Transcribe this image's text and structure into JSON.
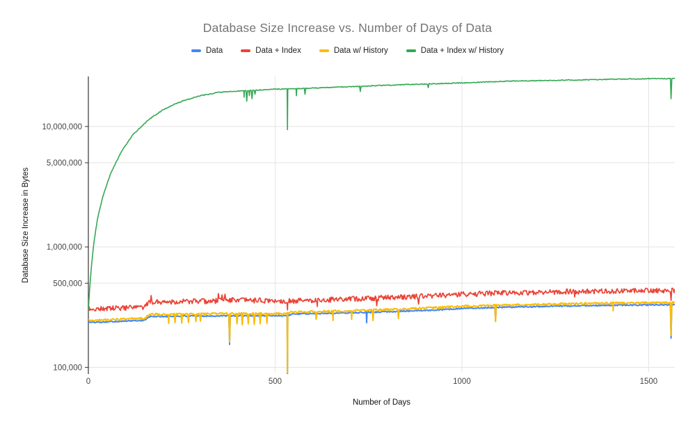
{
  "chart_data": {
    "type": "line",
    "title": "Database Size Increase vs. Number of Days of Data",
    "xlabel": "Number of Days",
    "ylabel": "Database Size Increase in Bytes",
    "x_scale": "linear",
    "y_scale": "log",
    "xlim": [
      0,
      1570
    ],
    "ylim": [
      88000,
      26000000
    ],
    "grid": true,
    "legend_position": "top-center",
    "x_ticks": [
      {
        "value": 0,
        "label": "0"
      },
      {
        "value": 500,
        "label": "500"
      },
      {
        "value": 1000,
        "label": "1000"
      },
      {
        "value": 1500,
        "label": "1500"
      }
    ],
    "y_ticks": [
      {
        "value": 100000,
        "label": "100,000"
      },
      {
        "value": 500000,
        "label": "500,000"
      },
      {
        "value": 1000000,
        "label": "1,000,000"
      },
      {
        "value": 5000000,
        "label": "5,000,000"
      },
      {
        "value": 10000000,
        "label": "10,000,000"
      }
    ],
    "colors": {
      "background": "#ffffff",
      "grid": "#e3e3e3",
      "axis": "#333333",
      "tick_label": "#444444",
      "axis_title": "#111111",
      "title": "#757575",
      "legend_text": "#202124"
    },
    "series": [
      {
        "name": "Data",
        "color": "#4285F4",
        "line_width": 2,
        "noise": 0.012,
        "seed": 101,
        "anchors": [
          [
            0,
            236000
          ],
          [
            150,
            246000
          ],
          [
            165,
            264000
          ],
          [
            300,
            267000
          ],
          [
            530,
            269000
          ],
          [
            548,
            277000
          ],
          [
            700,
            284000
          ],
          [
            850,
            293000
          ],
          [
            950,
            302000
          ],
          [
            1000,
            309000
          ],
          [
            1100,
            315000
          ],
          [
            1250,
            322000
          ],
          [
            1400,
            328000
          ],
          [
            1570,
            331000
          ]
        ],
        "spikes": [
          [
            378,
            155000
          ],
          [
            533,
            88000
          ],
          [
            745,
            235000
          ],
          [
            1090,
            245000
          ],
          [
            1560,
            175000
          ]
        ]
      },
      {
        "name": "Data + Index",
        "color": "#EA4335",
        "line_width": 1.7,
        "noise": 0.05,
        "seed": 202,
        "anchors": [
          [
            0,
            305000
          ],
          [
            150,
            315000
          ],
          [
            165,
            350000
          ],
          [
            340,
            355000
          ],
          [
            352,
            365000
          ],
          [
            530,
            355000
          ],
          [
            700,
            370000
          ],
          [
            850,
            385000
          ],
          [
            1000,
            405000
          ],
          [
            1100,
            415000
          ],
          [
            1250,
            425000
          ],
          [
            1400,
            430000
          ],
          [
            1570,
            435000
          ]
        ],
        "spikes": [
          [
            168,
            395000
          ],
          [
            348,
            410000
          ],
          [
            358,
            400000
          ],
          [
            366,
            405000
          ],
          [
            533,
            300000
          ],
          [
            613,
            320000
          ],
          [
            772,
            325000
          ],
          [
            884,
            335000
          ],
          [
            1302,
            385000
          ],
          [
            1560,
            360000
          ]
        ]
      },
      {
        "name": "Data w/ History",
        "color": "#FBBC04",
        "line_width": 2,
        "noise": 0.02,
        "seed": 303,
        "anchors": [
          [
            0,
            245000
          ],
          [
            150,
            255000
          ],
          [
            165,
            275000
          ],
          [
            300,
            278000
          ],
          [
            530,
            280000
          ],
          [
            548,
            288000
          ],
          [
            700,
            295000
          ],
          [
            850,
            305000
          ],
          [
            950,
            315000
          ],
          [
            1000,
            322000
          ],
          [
            1100,
            328000
          ],
          [
            1250,
            335000
          ],
          [
            1400,
            342000
          ],
          [
            1570,
            345000
          ]
        ],
        "spikes": [
          [
            215,
            232000
          ],
          [
            232,
            235000
          ],
          [
            250,
            233000
          ],
          [
            268,
            236000
          ],
          [
            288,
            240000
          ],
          [
            300,
            242000
          ],
          [
            378,
            162000
          ],
          [
            398,
            230000
          ],
          [
            412,
            226000
          ],
          [
            428,
            230000
          ],
          [
            444,
            228000
          ],
          [
            460,
            230000
          ],
          [
            478,
            232000
          ],
          [
            533,
            90000
          ],
          [
            610,
            250000
          ],
          [
            655,
            245000
          ],
          [
            705,
            250000
          ],
          [
            762,
            245000
          ],
          [
            830,
            255000
          ],
          [
            1090,
            240000
          ],
          [
            1405,
            295000
          ],
          [
            1560,
            185000
          ]
        ]
      },
      {
        "name": "Data + Index w/ History",
        "color": "#34A853",
        "line_width": 1.6,
        "noise": 0.008,
        "seed": 404,
        "anchors": [
          [
            0,
            300000
          ],
          [
            3,
            430000
          ],
          [
            8,
            680000
          ],
          [
            15,
            1100000
          ],
          [
            25,
            1750000
          ],
          [
            40,
            2700000
          ],
          [
            60,
            4100000
          ],
          [
            90,
            6300000
          ],
          [
            120,
            8600000
          ],
          [
            160,
            11300000
          ],
          [
            200,
            13800000
          ],
          [
            250,
            16200000
          ],
          [
            300,
            18000000
          ],
          [
            350,
            19200000
          ],
          [
            420,
            19800000
          ],
          [
            500,
            20400000
          ],
          [
            600,
            20800000
          ],
          [
            800,
            22000000
          ],
          [
            1000,
            23000000
          ],
          [
            1130,
            23800000
          ],
          [
            1300,
            24300000
          ],
          [
            1450,
            24800000
          ],
          [
            1570,
            25000000
          ]
        ],
        "spikes": [
          [
            417,
            17500000
          ],
          [
            424,
            16200000
          ],
          [
            431,
            18000000
          ],
          [
            438,
            17000000
          ],
          [
            446,
            18500000
          ],
          [
            533,
            9400000
          ],
          [
            557,
            18000000
          ],
          [
            580,
            18500000
          ],
          [
            728,
            19500000
          ],
          [
            910,
            21000000
          ],
          [
            1560,
            17000000
          ]
        ]
      }
    ]
  }
}
